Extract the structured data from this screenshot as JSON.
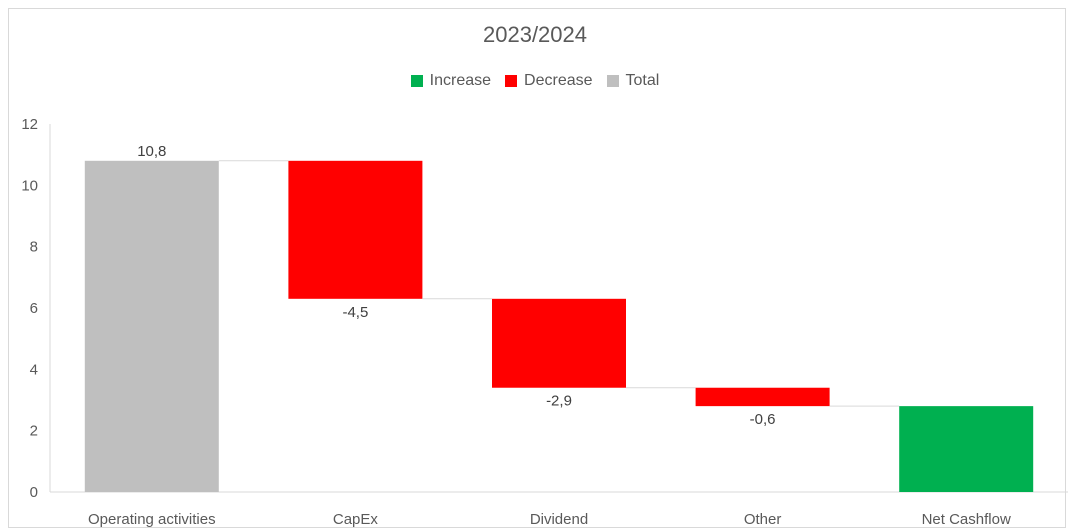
{
  "chart_data": {
    "type": "bar",
    "subtype": "waterfall",
    "title": "2023/2024",
    "categories": [
      "Operating activities",
      "CapEx",
      "Dividend",
      "Other",
      "Net Cashflow"
    ],
    "values": [
      10.8,
      -4.5,
      -2.9,
      -0.6,
      2.8
    ],
    "kinds": [
      "total",
      "decrease",
      "decrease",
      "decrease",
      "increase"
    ],
    "data_labels": [
      "10,8",
      "-4,5",
      "-2,9",
      "-0,6",
      ""
    ],
    "ylim": [
      0,
      12
    ],
    "yticks": [
      0,
      2,
      4,
      6,
      8,
      10,
      12
    ],
    "xlabel": "",
    "ylabel": "",
    "grid": false,
    "legend": {
      "placement": "top",
      "items": [
        {
          "label": "Increase",
          "color": "#00b050"
        },
        {
          "label": "Decrease",
          "color": "#ff0000"
        },
        {
          "label": "Total",
          "color": "#bfbfbf"
        }
      ]
    },
    "colors": {
      "increase": "#00b050",
      "decrease": "#ff0000",
      "total": "#bfbfbf"
    }
  }
}
